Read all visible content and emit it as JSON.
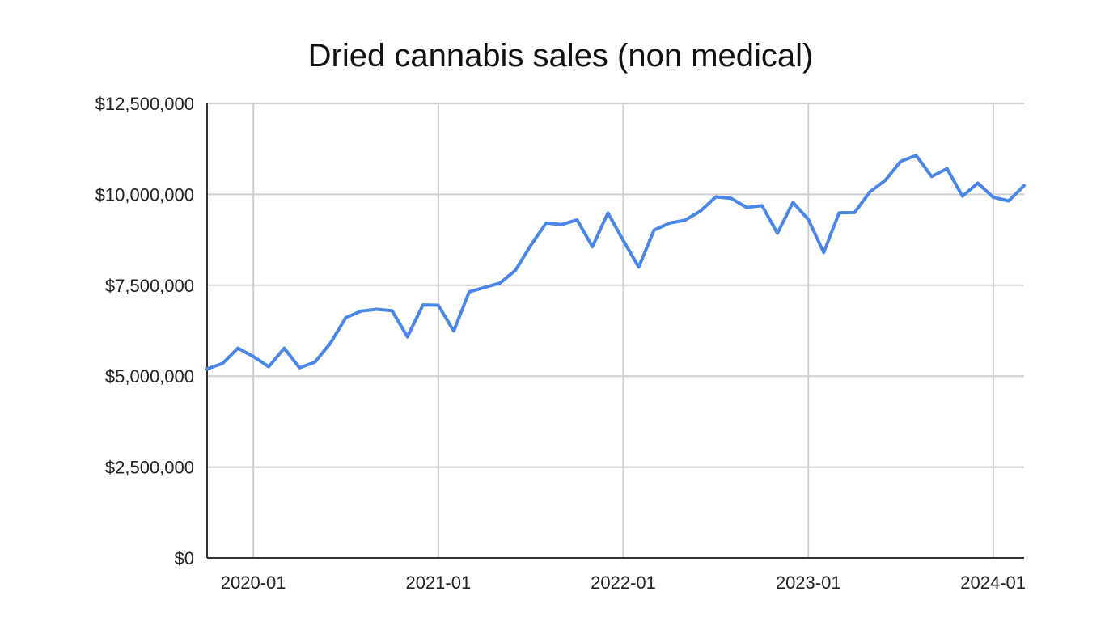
{
  "chart_data": {
    "type": "line",
    "title": "Dried cannabis sales (non medical)",
    "xlabel": "",
    "ylabel": "",
    "grid": true,
    "legend": "none",
    "x_ticks": [
      "2020-01",
      "2021-01",
      "2022-01",
      "2023-01",
      "2024-01"
    ],
    "y_ticks": [
      "$0",
      "$2,500,000",
      "$5,000,000",
      "$7,500,000",
      "$10,000,000",
      "$12,500,000"
    ],
    "x_range": [
      "2019-10",
      "2024-03"
    ],
    "ylim": [
      0,
      12500000
    ],
    "colors": {
      "series": "#4a86e8",
      "grid": "#cfcfcf",
      "axis": "#333333",
      "text": "#222222"
    },
    "series": [
      {
        "x": [
          "2019-10",
          "2019-11",
          "2019-12",
          "2020-01",
          "2020-02",
          "2020-03",
          "2020-04",
          "2020-05",
          "2020-06",
          "2020-07",
          "2020-08",
          "2020-09",
          "2020-10",
          "2020-11",
          "2020-12",
          "2021-01",
          "2021-02",
          "2021-03",
          "2021-04",
          "2021-05",
          "2021-06",
          "2021-07",
          "2021-08",
          "2021-09",
          "2021-10",
          "2021-11",
          "2021-12",
          "2022-01",
          "2022-02",
          "2022-03",
          "2022-04",
          "2022-05",
          "2022-06",
          "2022-07",
          "2022-08",
          "2022-09",
          "2022-10",
          "2022-11",
          "2022-12",
          "2023-01",
          "2023-02",
          "2023-03",
          "2023-04",
          "2023-05",
          "2023-06",
          "2023-07",
          "2023-08",
          "2023-09",
          "2023-10",
          "2023-11",
          "2023-12",
          "2024-01",
          "2024-02",
          "2024-03"
        ],
        "y": [
          5200000,
          5350000,
          5770000,
          5540000,
          5260000,
          5770000,
          5230000,
          5390000,
          5910000,
          6610000,
          6790000,
          6840000,
          6800000,
          6080000,
          6960000,
          6950000,
          6240000,
          7320000,
          7440000,
          7560000,
          7910000,
          8600000,
          9210000,
          9170000,
          9300000,
          8560000,
          9490000,
          8730000,
          8000000,
          9020000,
          9210000,
          9290000,
          9540000,
          9930000,
          9890000,
          9640000,
          9690000,
          8930000,
          9780000,
          9310000,
          8400000,
          9490000,
          9500000,
          10070000,
          10390000,
          10910000,
          11070000,
          10490000,
          10710000,
          9950000,
          10310000,
          9920000,
          9820000,
          10240000
        ]
      }
    ]
  }
}
